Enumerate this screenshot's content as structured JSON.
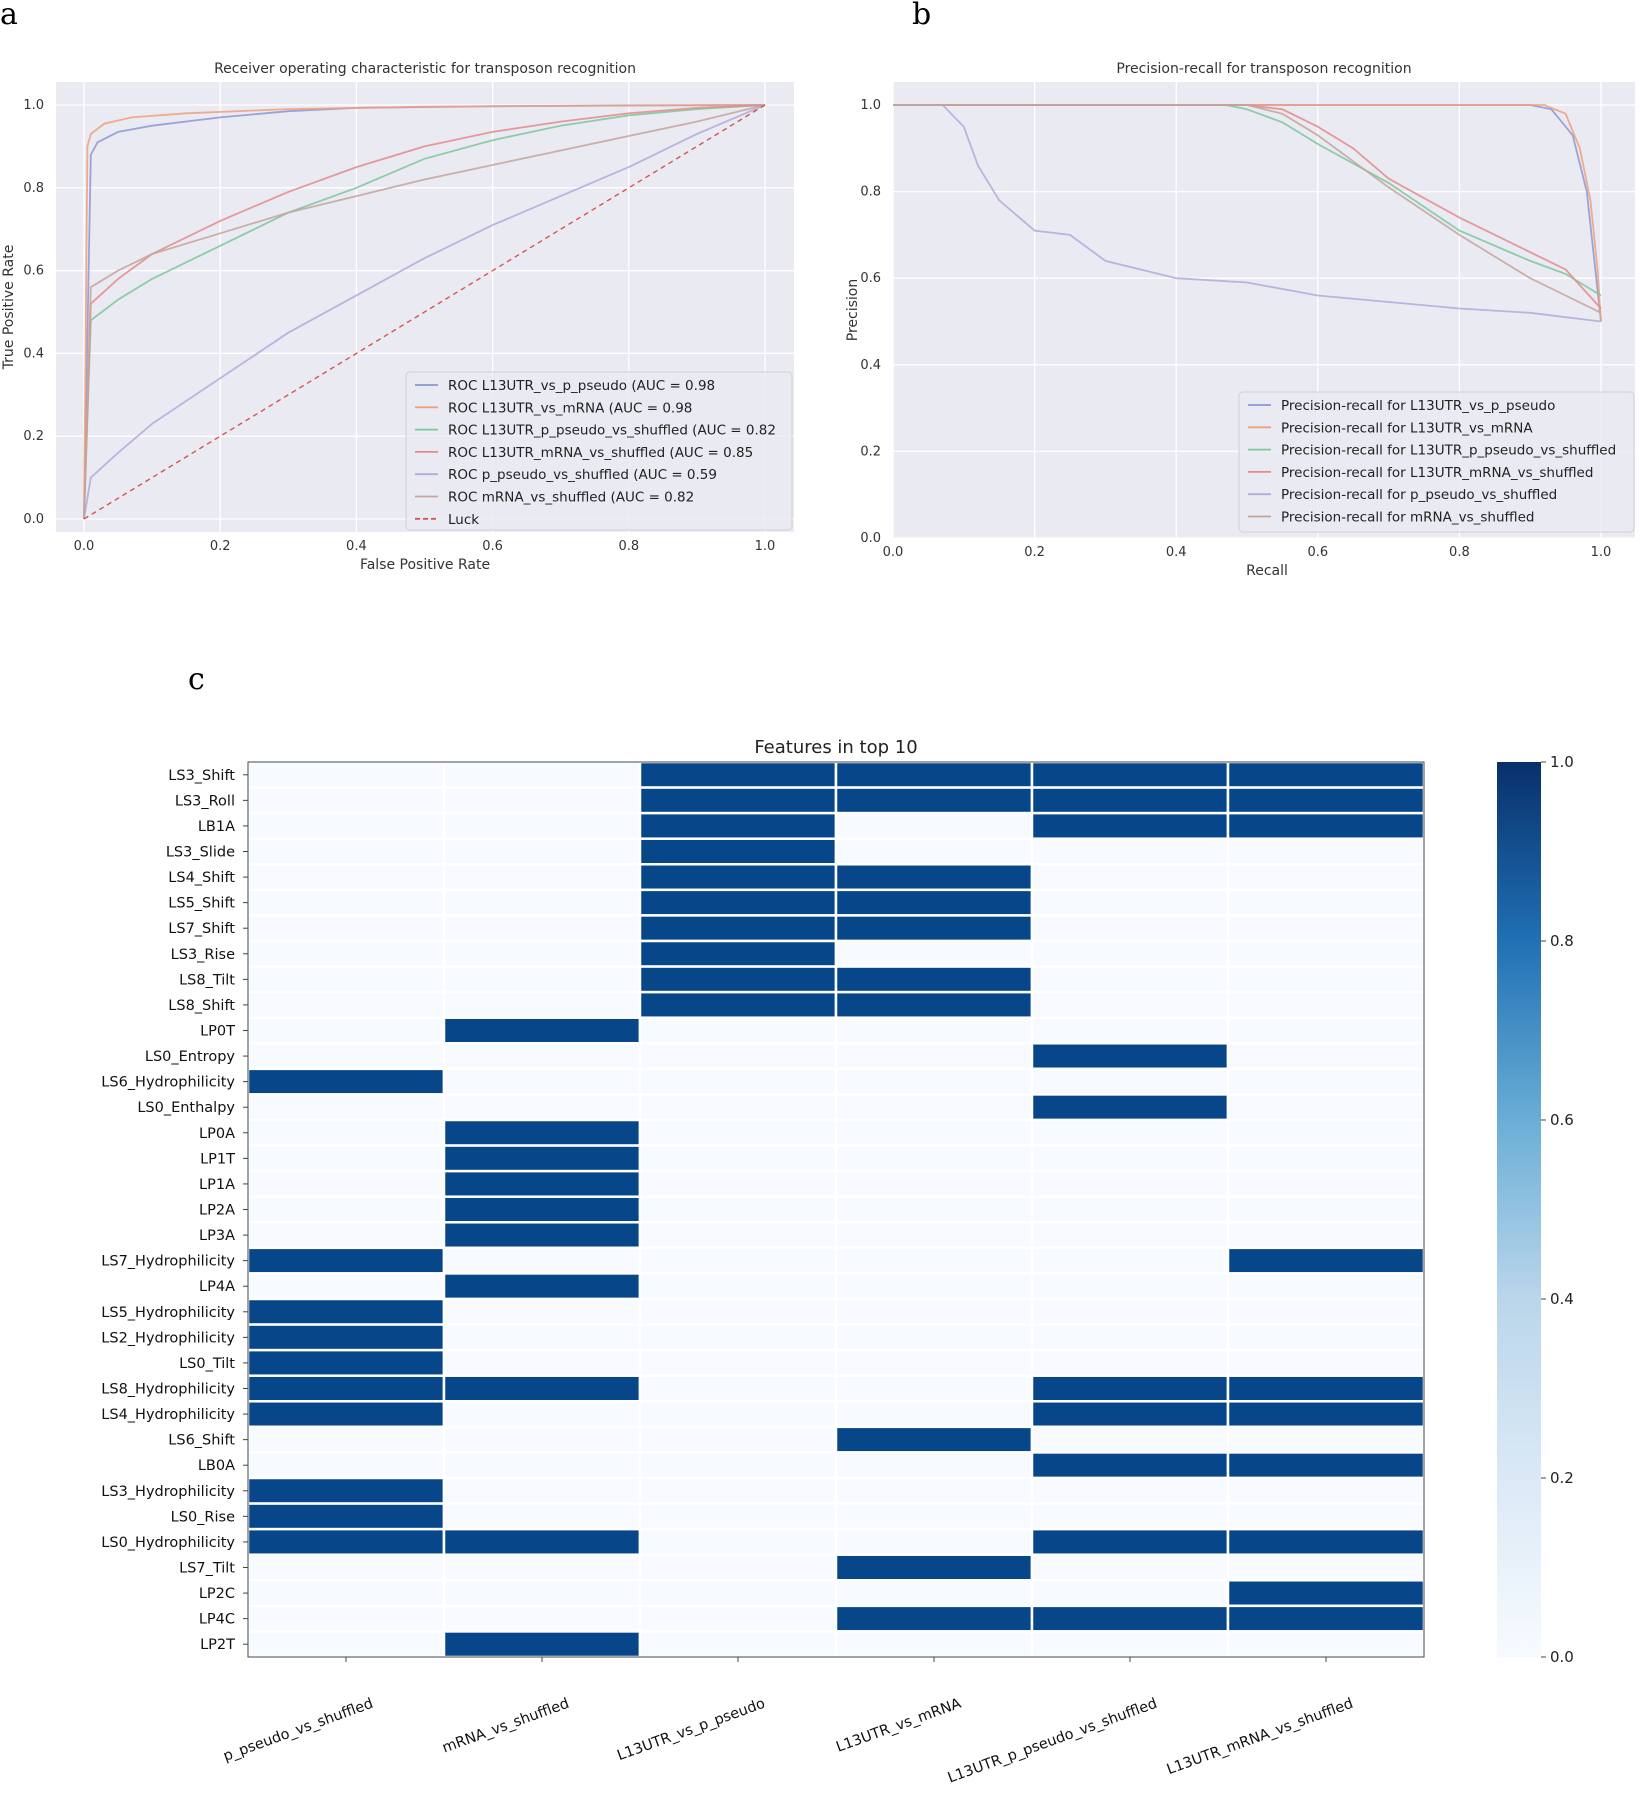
{
  "panels": {
    "a": "a",
    "b": "b",
    "c": "c"
  },
  "chart_data": [
    {
      "type": "line",
      "title": "Receiver operating characteristic for transposon recognition",
      "xlabel": "False Positive Rate",
      "ylabel": "True Positive Rate",
      "xlim": [
        0,
        1
      ],
      "ylim": [
        0,
        1
      ],
      "xticks": [
        "0.0",
        "0.2",
        "0.4",
        "0.6",
        "0.8",
        "1.0"
      ],
      "yticks": [
        "0.0",
        "0.2",
        "0.4",
        "0.6",
        "0.8",
        "1.0"
      ],
      "grid": true,
      "legend": "lower-right",
      "series": [
        {
          "name": "ROC L13UTR_vs_p_pseudo (AUC = 0.98",
          "color": "#8c96d4",
          "x": [
            0,
            0.01,
            0.02,
            0.05,
            0.1,
            0.2,
            0.3,
            0.4,
            0.6,
            0.8,
            1.0
          ],
          "y": [
            0,
            0.88,
            0.91,
            0.935,
            0.95,
            0.97,
            0.985,
            0.993,
            0.997,
            0.999,
            1.0
          ]
        },
        {
          "name": "ROC L13UTR_vs_mRNA (AUC = 0.98",
          "color": "#f0a07a",
          "x": [
            0,
            0.005,
            0.01,
            0.03,
            0.07,
            0.15,
            0.3,
            0.5,
            1.0
          ],
          "y": [
            0,
            0.9,
            0.93,
            0.955,
            0.97,
            0.98,
            0.99,
            0.996,
            1.0
          ]
        },
        {
          "name": "ROC L13UTR_p_pseudo_vs_shuffled (AUC = 0.82",
          "color": "#7cc79b",
          "x": [
            0,
            0.01,
            0.05,
            0.1,
            0.2,
            0.3,
            0.4,
            0.5,
            0.6,
            0.7,
            0.8,
            0.9,
            1.0
          ],
          "y": [
            0,
            0.48,
            0.53,
            0.58,
            0.66,
            0.74,
            0.8,
            0.87,
            0.915,
            0.95,
            0.975,
            0.99,
            1.0
          ]
        },
        {
          "name": "ROC L13UTR_mRNA_vs_shuffled (AUC = 0.85",
          "color": "#e58a8a",
          "x": [
            0,
            0.01,
            0.05,
            0.1,
            0.2,
            0.3,
            0.4,
            0.5,
            0.6,
            0.7,
            0.8,
            0.9,
            1.0
          ],
          "y": [
            0,
            0.52,
            0.58,
            0.64,
            0.72,
            0.79,
            0.85,
            0.9,
            0.935,
            0.96,
            0.98,
            0.993,
            1.0
          ]
        },
        {
          "name": "ROC p_pseudo_vs_shuffled (AUC = 0.59",
          "color": "#b4a8dc",
          "x": [
            0,
            0.01,
            0.05,
            0.1,
            0.2,
            0.3,
            0.4,
            0.5,
            0.6,
            0.7,
            0.8,
            0.9,
            1.0
          ],
          "y": [
            0,
            0.1,
            0.16,
            0.23,
            0.34,
            0.45,
            0.54,
            0.63,
            0.71,
            0.78,
            0.85,
            0.93,
            1.0
          ]
        },
        {
          "name": "ROC mRNA_vs_shuffled (AUC = 0.82",
          "color": "#c3a49a",
          "x": [
            0,
            0.01,
            0.05,
            0.1,
            0.2,
            0.3,
            0.4,
            0.5,
            0.6,
            0.7,
            0.8,
            0.9,
            1.0
          ],
          "y": [
            0,
            0.56,
            0.6,
            0.64,
            0.69,
            0.74,
            0.78,
            0.82,
            0.855,
            0.89,
            0.925,
            0.96,
            1.0
          ]
        },
        {
          "name": "Luck",
          "color": "#d9534f",
          "dashed": true,
          "x": [
            0,
            1
          ],
          "y": [
            0,
            1
          ]
        }
      ]
    },
    {
      "type": "line",
      "title": "Precision-recall for transposon recognition",
      "xlabel": "Recall",
      "ylabel": "Precision",
      "xlim": [
        0,
        1
      ],
      "ylim": [
        0,
        1
      ],
      "xticks": [
        "0.0",
        "0.2",
        "0.4",
        "0.6",
        "0.8",
        "1.0"
      ],
      "yticks": [
        "0.0",
        "0.2",
        "0.4",
        "0.6",
        "0.8",
        "1.0"
      ],
      "grid": true,
      "legend": "lower-right",
      "series": [
        {
          "name": "Precision-recall for L13UTR_vs_p_pseudo",
          "color": "#8c96d4",
          "x": [
            0,
            0.9,
            0.93,
            0.96,
            0.98,
            0.99,
            1.0
          ],
          "y": [
            1.0,
            1.0,
            0.99,
            0.93,
            0.8,
            0.65,
            0.5
          ]
        },
        {
          "name": "Precision-recall for L13UTR_vs_mRNA",
          "color": "#f0a07a",
          "x": [
            0,
            0.92,
            0.95,
            0.97,
            0.985,
            0.995,
            1.0
          ],
          "y": [
            1.0,
            1.0,
            0.98,
            0.9,
            0.78,
            0.62,
            0.5
          ]
        },
        {
          "name": "Precision-recall for L13UTR_p_pseudo_vs_shuffled",
          "color": "#7cc79b",
          "x": [
            0,
            0.47,
            0.5,
            0.55,
            0.6,
            0.7,
            0.8,
            0.9,
            0.95,
            1.0
          ],
          "y": [
            1.0,
            1.0,
            0.99,
            0.96,
            0.91,
            0.82,
            0.71,
            0.64,
            0.61,
            0.56
          ]
        },
        {
          "name": "Precision-recall for L13UTR_mRNA_vs_shuffled",
          "color": "#e58a8a",
          "x": [
            0,
            0.5,
            0.55,
            0.6,
            0.65,
            0.7,
            0.8,
            0.9,
            0.95,
            1.0
          ],
          "y": [
            1.0,
            1.0,
            0.99,
            0.95,
            0.9,
            0.83,
            0.74,
            0.66,
            0.62,
            0.53
          ]
        },
        {
          "name": "Precision-recall for p_pseudo_vs_shuffled",
          "color": "#b4a8dc",
          "x": [
            0,
            0.07,
            0.1,
            0.12,
            0.15,
            0.2,
            0.25,
            0.3,
            0.4,
            0.5,
            0.6,
            0.7,
            0.8,
            0.9,
            1.0
          ],
          "y": [
            1.0,
            1.0,
            0.95,
            0.86,
            0.78,
            0.71,
            0.7,
            0.64,
            0.6,
            0.59,
            0.56,
            0.545,
            0.53,
            0.52,
            0.5
          ]
        },
        {
          "name": "Precision-recall for mRNA_vs_shuffled",
          "color": "#c3a49a",
          "x": [
            0,
            0.5,
            0.55,
            0.6,
            0.7,
            0.8,
            0.9,
            0.95,
            1.0
          ],
          "y": [
            1.0,
            1.0,
            0.98,
            0.93,
            0.81,
            0.7,
            0.6,
            0.56,
            0.52
          ]
        }
      ]
    },
    {
      "type": "heatmap",
      "title": "Features in top 10",
      "colorbar": {
        "ticks": [
          "0.0",
          "0.2",
          "0.4",
          "0.6",
          "0.8",
          "1.0"
        ],
        "min": 0,
        "max": 1
      },
      "columns": [
        "p_pseudo_vs_shuffled",
        "mRNA_vs_shuffled",
        "L13UTR_vs_p_pseudo",
        "L13UTR_vs_mRNA",
        "L13UTR_p_pseudo_vs_shuffled",
        "L13UTR_mRNA_vs_shuffled"
      ],
      "rows": [
        "LS3_Shift",
        "LS3_Roll",
        "LB1A",
        "LS3_Slide",
        "LS4_Shift",
        "LS5_Shift",
        "LS7_Shift",
        "LS3_Rise",
        "LS8_Tilt",
        "LS8_Shift",
        "LP0T",
        "LS0_Entropy",
        "LS6_Hydrophilicity",
        "LS0_Enthalpy",
        "LP0A",
        "LP1T",
        "LP1A",
        "LP2A",
        "LP3A",
        "LS7_Hydrophilicity",
        "LP4A",
        "LS5_Hydrophilicity",
        "LS2_Hydrophilicity",
        "LS0_Tilt",
        "LS8_Hydrophilicity",
        "LS4_Hydrophilicity",
        "LS6_Shift",
        "LB0A",
        "LS3_Hydrophilicity",
        "LS0_Rise",
        "LS0_Hydrophilicity",
        "LS7_Tilt",
        "LP2C",
        "LP4C",
        "LP2T"
      ],
      "values": [
        [
          0,
          0,
          1,
          1,
          1,
          1
        ],
        [
          0,
          0,
          1,
          1,
          1,
          1
        ],
        [
          0,
          0,
          1,
          0,
          1,
          1
        ],
        [
          0,
          0,
          1,
          0,
          0,
          0
        ],
        [
          0,
          0,
          1,
          1,
          0,
          0
        ],
        [
          0,
          0,
          1,
          1,
          0,
          0
        ],
        [
          0,
          0,
          1,
          1,
          0,
          0
        ],
        [
          0,
          0,
          1,
          0,
          0,
          0
        ],
        [
          0,
          0,
          1,
          1,
          0,
          0
        ],
        [
          0,
          0,
          1,
          1,
          0,
          0
        ],
        [
          0,
          1,
          0,
          0,
          0,
          0
        ],
        [
          0,
          0,
          0,
          0,
          1,
          0
        ],
        [
          1,
          0,
          0,
          0,
          0,
          0
        ],
        [
          0,
          0,
          0,
          0,
          1,
          0
        ],
        [
          0,
          1,
          0,
          0,
          0,
          0
        ],
        [
          0,
          1,
          0,
          0,
          0,
          0
        ],
        [
          0,
          1,
          0,
          0,
          0,
          0
        ],
        [
          0,
          1,
          0,
          0,
          0,
          0
        ],
        [
          0,
          1,
          0,
          0,
          0,
          0
        ],
        [
          1,
          0,
          0,
          0,
          0,
          1
        ],
        [
          0,
          1,
          0,
          0,
          0,
          0
        ],
        [
          1,
          0,
          0,
          0,
          0,
          0
        ],
        [
          1,
          0,
          0,
          0,
          0,
          0
        ],
        [
          1,
          0,
          0,
          0,
          0,
          0
        ],
        [
          1,
          1,
          0,
          0,
          1,
          1
        ],
        [
          1,
          0,
          0,
          0,
          1,
          1
        ],
        [
          0,
          0,
          0,
          1,
          0,
          0
        ],
        [
          0,
          0,
          0,
          0,
          1,
          1
        ],
        [
          1,
          0,
          0,
          0,
          0,
          0
        ],
        [
          1,
          0,
          0,
          0,
          0,
          0
        ],
        [
          1,
          1,
          0,
          0,
          1,
          1
        ],
        [
          0,
          0,
          0,
          1,
          0,
          0
        ],
        [
          0,
          0,
          0,
          0,
          0,
          1
        ],
        [
          0,
          0,
          0,
          1,
          1,
          1
        ],
        [
          0,
          1,
          0,
          0,
          0,
          0
        ]
      ],
      "low_color": "#f7fbff",
      "high_color": "#08468a"
    }
  ]
}
